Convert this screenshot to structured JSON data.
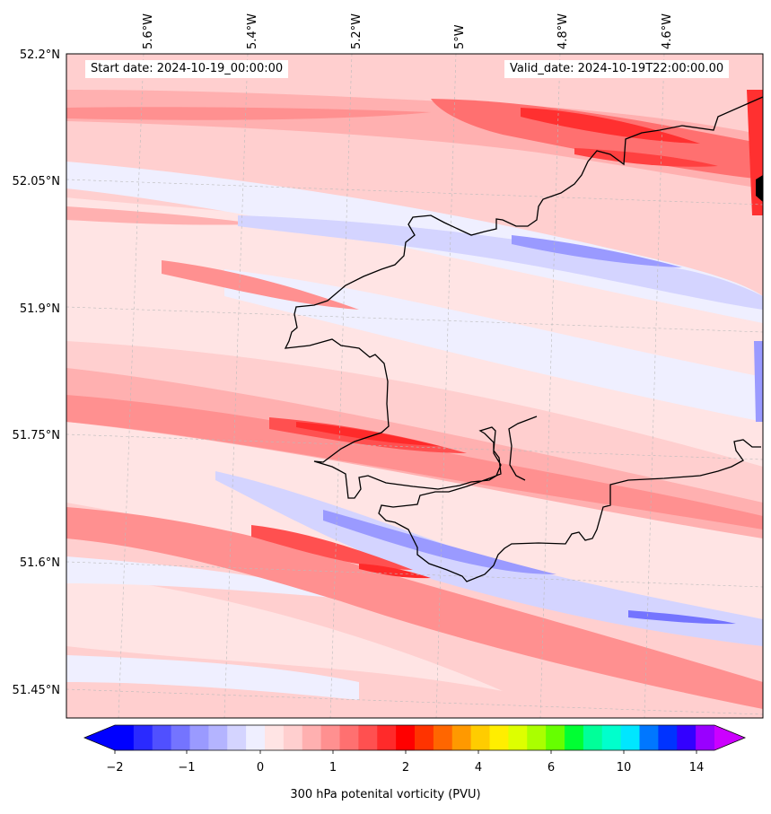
{
  "map": {
    "lon_labels": [
      "5.6°W",
      "5.4°W",
      "5.2°W",
      "5°W",
      "4.8°W",
      "4.6°W"
    ],
    "lat_labels": [
      "52.2°N",
      "52.05°N",
      "51.9°N",
      "51.75°N",
      "51.6°N",
      "51.45°N"
    ],
    "start_date": "Start date: 2024-10-19_00:00:00",
    "valid_date": "Valid_date: 2024-10-19T22:00:00.00",
    "coastline_color": "#000000",
    "gridline_color": "#bbbbbb"
  },
  "colorbar": {
    "label": "300 hPa potenital vorticity (PVU)",
    "tick_labels": [
      "−2",
      "−1",
      "0",
      "1",
      "2",
      "4",
      "6",
      "10",
      "14"
    ],
    "colors": [
      "#0000ff",
      "#2a2aff",
      "#5050ff",
      "#7474ff",
      "#9a9aff",
      "#b4b4ff",
      "#d4d4ff",
      "#efefff",
      "#ffe4e4",
      "#ffcfcf",
      "#ffb0b0",
      "#ff9090",
      "#ff7070",
      "#ff5050",
      "#ff2a2a",
      "#ff0000",
      "#ff3300",
      "#ff6600",
      "#ff9900",
      "#ffcc00",
      "#ffee00",
      "#ddff00",
      "#aaff00",
      "#66ff00",
      "#00ff33",
      "#00ff99",
      "#00ffcc",
      "#00e6ff",
      "#0077ff",
      "#0033ff",
      "#3300ff",
      "#9900ff"
    ],
    "under_color": "#0000ff",
    "over_color": "#cc00ff"
  }
}
